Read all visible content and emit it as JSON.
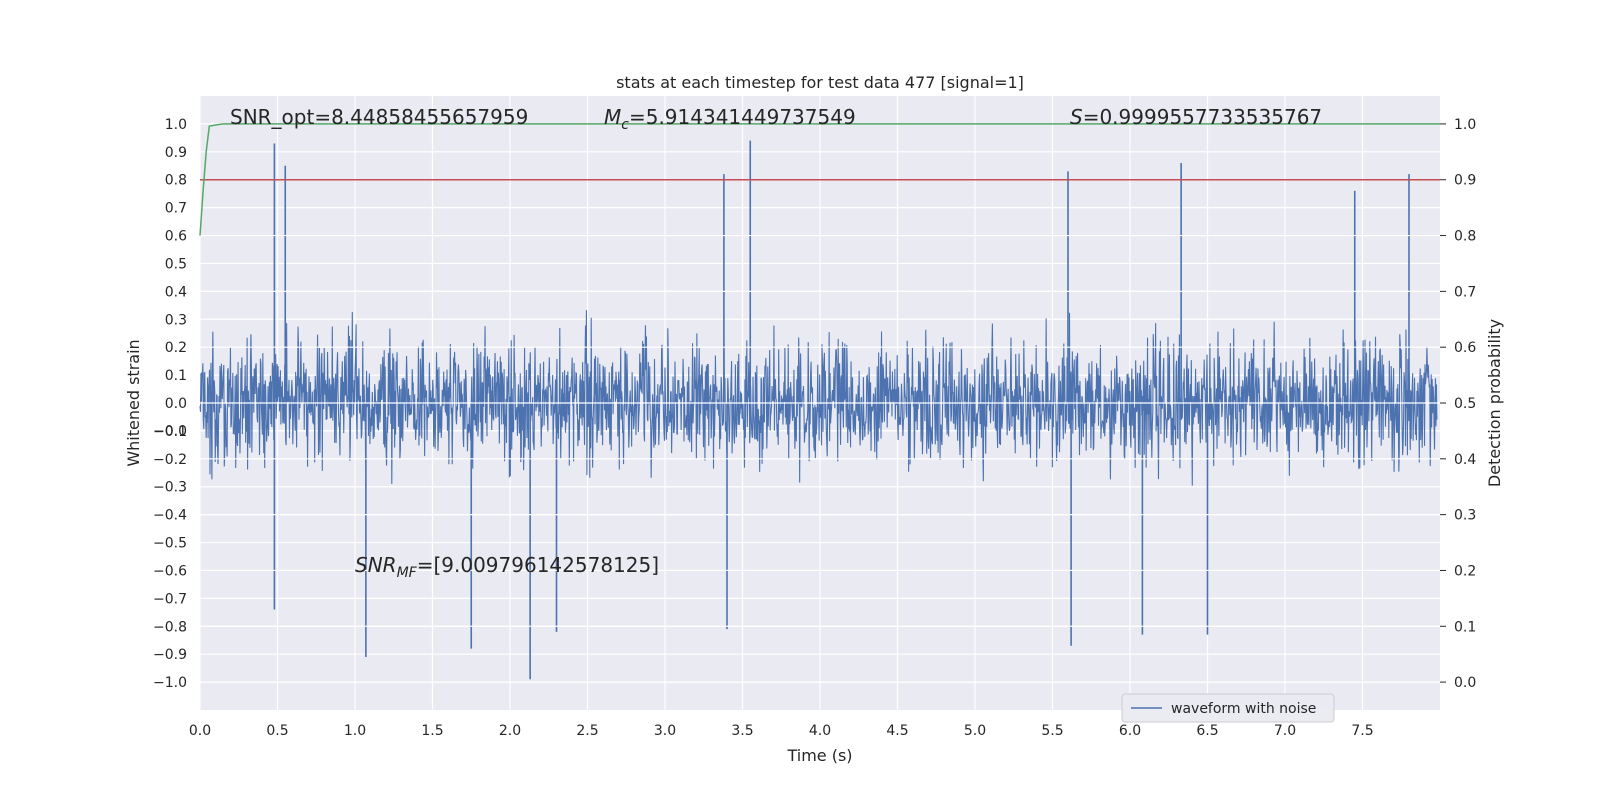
{
  "chart_data": {
    "type": "line",
    "title": "stats at each timestep for test data 477 [signal=1]",
    "xlabel": "Time (s)",
    "ylabel": "Whitened strain",
    "y2label": "Detection probability",
    "xlim": [
      0.0,
      8.0
    ],
    "ylim": [
      -1.1,
      1.1
    ],
    "y2lim": [
      -0.05,
      1.05
    ],
    "xticks": [
      "0.0",
      "0.5",
      "1.0",
      "1.5",
      "2.0",
      "2.5",
      "3.0",
      "3.5",
      "4.0",
      "4.5",
      "5.0",
      "5.5",
      "6.0",
      "6.5",
      "7.0",
      "7.5"
    ],
    "yticks": [
      "1.0",
      "0.9",
      "0.8",
      "0.7",
      "0.6",
      "0.5",
      "0.4",
      "0.3",
      "0.2",
      "0.1",
      "0.0",
      "−0.0",
      "−0.1",
      "−0.2",
      "−0.3",
      "−0.4",
      "−0.5",
      "−0.6",
      "−0.7",
      "−0.8",
      "−0.9",
      "−1.0"
    ],
    "y2ticks": [
      "1.0",
      "0.9",
      "0.8",
      "0.7",
      "0.6",
      "0.5",
      "0.4",
      "0.3",
      "0.2",
      "0.1",
      "0.0"
    ],
    "grid": true,
    "legend_position": "bottom-right",
    "series": [
      {
        "name": "waveform with noise",
        "axis": "left",
        "color": "#4c72b0",
        "style": "dense noise",
        "amplitude_range": [
          -1.0,
          0.95
        ],
        "peaks": [
          {
            "x": 0.48,
            "y": 0.93
          },
          {
            "x": 0.55,
            "y": 0.85
          },
          {
            "x": 3.55,
            "y": 0.94
          },
          {
            "x": 3.38,
            "y": 0.82
          },
          {
            "x": 5.6,
            "y": 0.83
          },
          {
            "x": 6.33,
            "y": 0.86
          },
          {
            "x": 7.8,
            "y": 0.82
          },
          {
            "x": 7.45,
            "y": 0.76
          }
        ],
        "troughs": [
          {
            "x": 1.07,
            "y": -0.91
          },
          {
            "x": 1.75,
            "y": -0.88
          },
          {
            "x": 2.13,
            "y": -0.99
          },
          {
            "x": 2.3,
            "y": -0.82
          },
          {
            "x": 0.48,
            "y": -0.74
          },
          {
            "x": 3.4,
            "y": -0.81
          },
          {
            "x": 5.62,
            "y": -0.87
          },
          {
            "x": 6.08,
            "y": -0.83
          },
          {
            "x": 6.5,
            "y": -0.83
          }
        ]
      },
      {
        "name": "detection probability",
        "axis": "right",
        "color": "#55a868",
        "x": [
          0.0,
          0.02,
          0.04,
          0.06,
          0.1,
          0.15,
          0.2,
          1.0,
          2.0,
          4.0,
          6.0,
          8.0
        ],
        "values": [
          0.8,
          0.88,
          0.95,
          0.996,
          0.998,
          1.0,
          1.0,
          1.0,
          1.0,
          1.0,
          1.0,
          1.0
        ]
      },
      {
        "name": "threshold",
        "axis": "right",
        "color": "#c44e52",
        "x": [
          0.0,
          8.0
        ],
        "values": [
          0.9,
          0.9
        ]
      }
    ],
    "annotations": {
      "snr_opt": "SNR_opt=8.44858455657959",
      "mc_symbol": "M",
      "mc_sub": "c",
      "mc_value": "=5.914341449737549",
      "s_symbol": "S",
      "s_value": "=0.9999557733535767",
      "snr_mf_symbol": "SNR",
      "snr_mf_sub": "MF",
      "snr_mf_value": "=[9.009796142578125]"
    }
  }
}
